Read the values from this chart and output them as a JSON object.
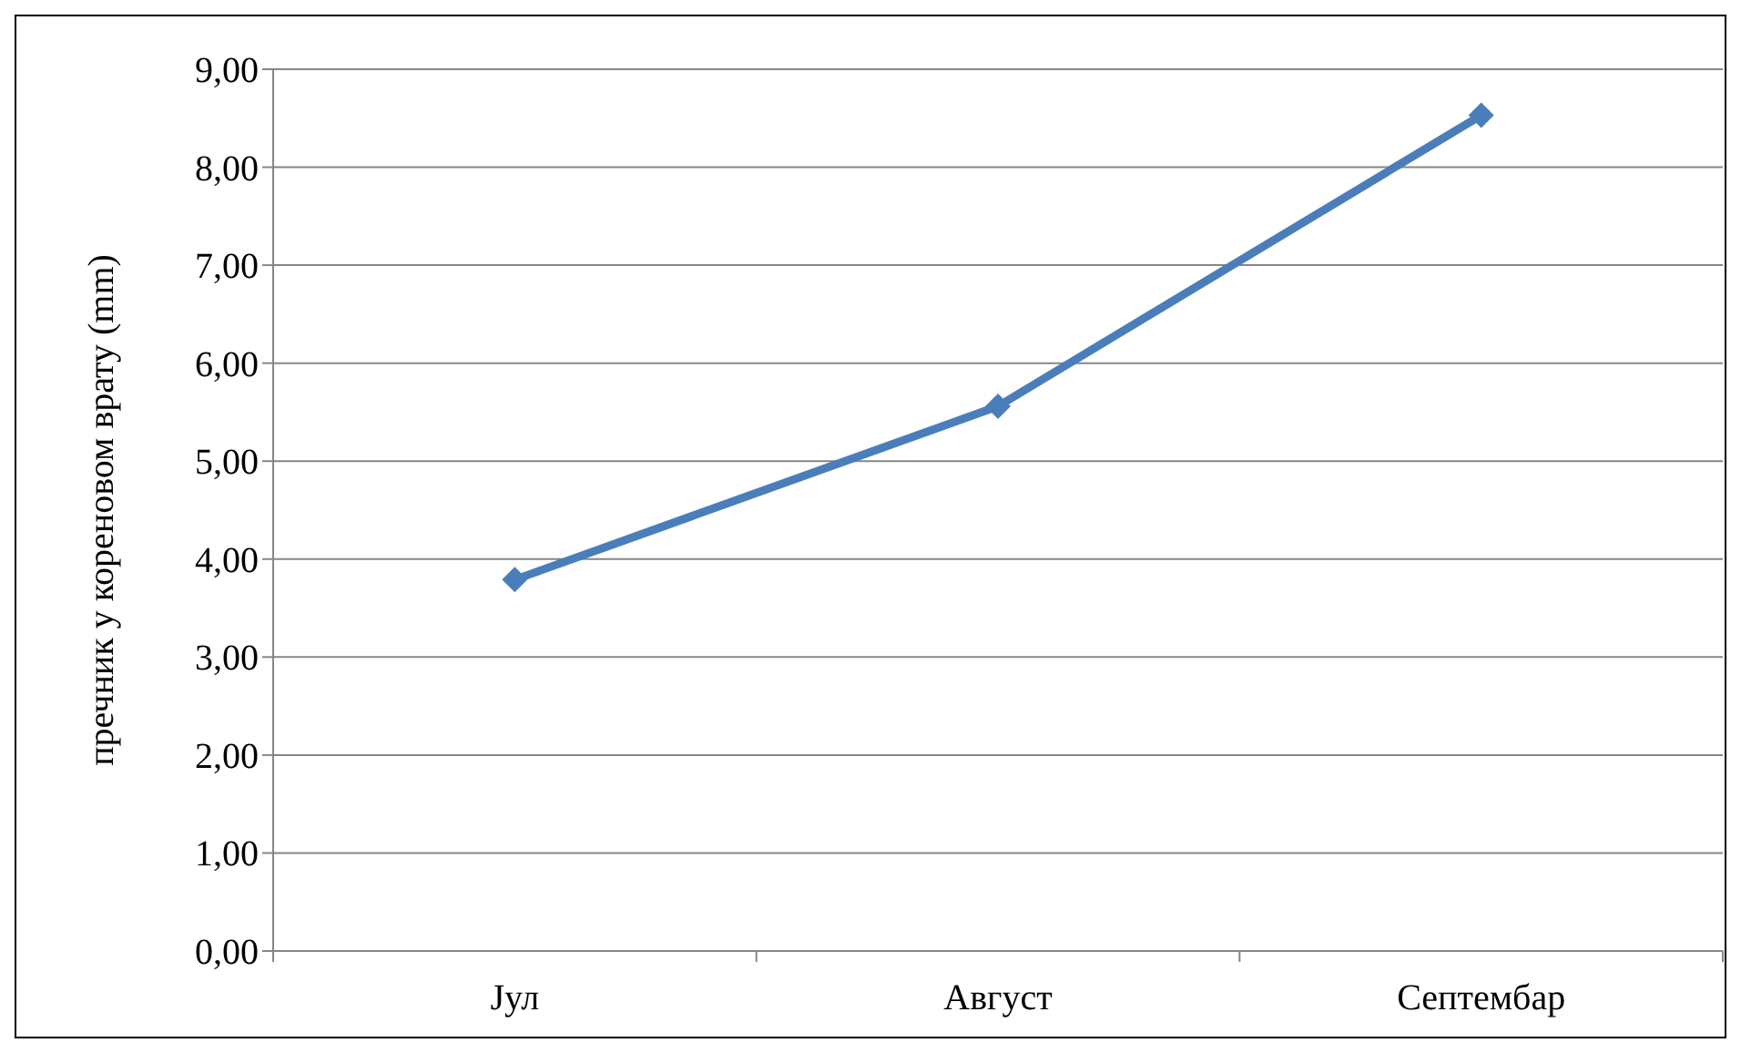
{
  "chart_data": {
    "type": "line",
    "ylabel": "пречник у кореновом врату (mm)",
    "categories": [
      "Јул",
      "Август",
      "Септембар"
    ],
    "series": [
      {
        "color": "#4a7ebb",
        "values": [
          3.79,
          5.56,
          8.53
        ]
      }
    ],
    "ylim": [
      0,
      9
    ],
    "yticks": [
      {
        "value": 0,
        "label": "0,00"
      },
      {
        "value": 1,
        "label": "1,00"
      },
      {
        "value": 2,
        "label": "2,00"
      },
      {
        "value": 3,
        "label": "3,00"
      },
      {
        "value": 4,
        "label": "4,00"
      },
      {
        "value": 5,
        "label": "5,00"
      },
      {
        "value": 6,
        "label": "6,00"
      },
      {
        "value": 7,
        "label": "7,00"
      },
      {
        "value": 8,
        "label": "8,00"
      },
      {
        "value": 9,
        "label": "9,00"
      }
    ],
    "grid": "y",
    "marker": "diamond",
    "line_style": "solid"
  }
}
